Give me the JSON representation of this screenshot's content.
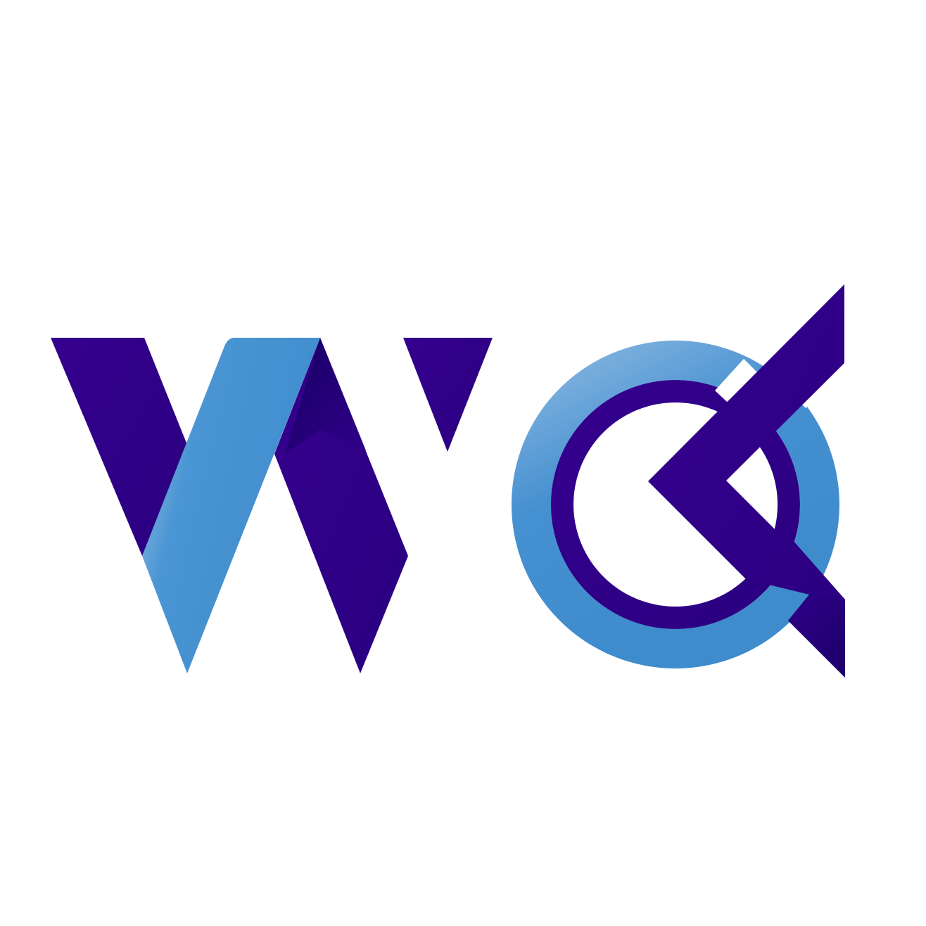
{
  "logo": {
    "name": "WQ monogram",
    "colors": {
      "background": "#ffffff",
      "indigo": "#31008a",
      "indigo_dark": "#14005e",
      "blue": "#428fd0",
      "blue_light": "#9cc2e6"
    }
  }
}
